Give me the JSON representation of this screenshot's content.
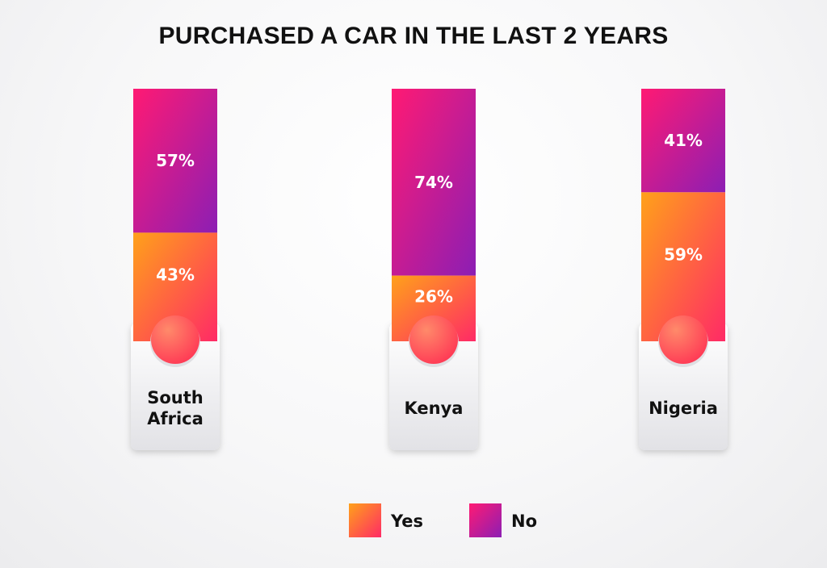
{
  "chart_data": {
    "type": "bar",
    "stacked": true,
    "title": "PURCHASED A CAR IN THE LAST 2 YEARS",
    "categories": [
      "South Africa",
      "Kenya",
      "Nigeria"
    ],
    "category_lines": [
      [
        "South",
        "Africa"
      ],
      [
        "Kenya"
      ],
      [
        "Nigeria"
      ]
    ],
    "series": [
      {
        "name": "Yes",
        "values": [
          43,
          26,
          59
        ],
        "labels": [
          "43%",
          "26%",
          "59%"
        ]
      },
      {
        "name": "No",
        "values": [
          57,
          74,
          41
        ],
        "labels": [
          "57%",
          "74%",
          "41%"
        ]
      }
    ],
    "ylim": [
      0,
      100
    ],
    "legend": "bottom-center",
    "colors": {
      "yes_start": "#ffa11a",
      "yes_end": "#ff2a66",
      "no_start": "#ff1a73",
      "no_end": "#8c1eb4",
      "base_circle": "#ff4f55"
    }
  }
}
